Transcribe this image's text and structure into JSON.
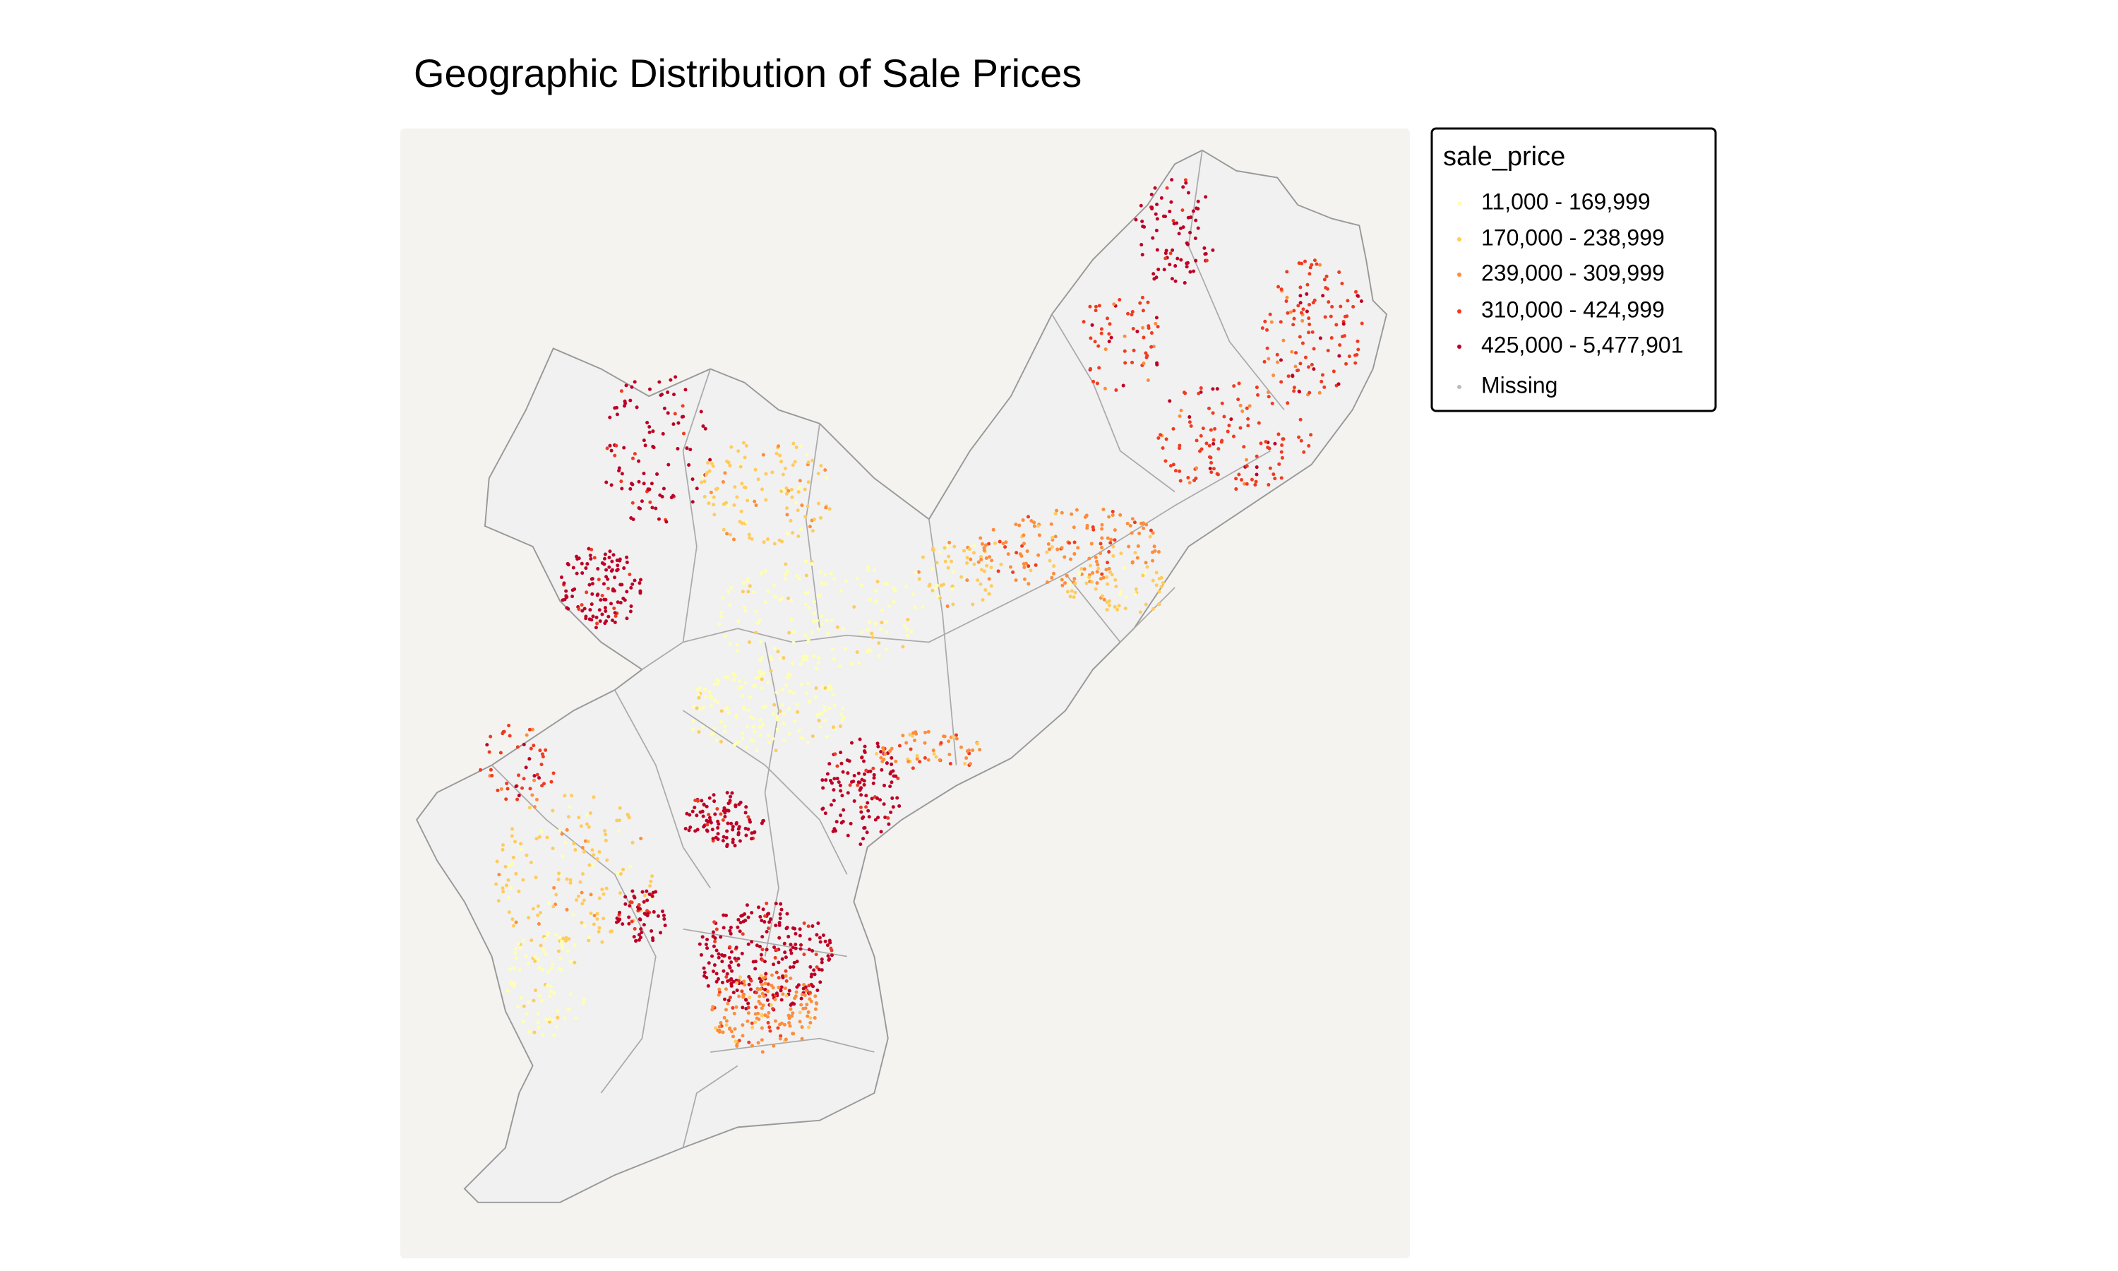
{
  "title": "Geographic Distribution of Sale Prices",
  "legend": {
    "title": "sale_price",
    "items": [
      {
        "label": "11,000 - 169,999",
        "color": "#ffffb2"
      },
      {
        "label": "170,000 - 238,999",
        "color": "#fecc5c"
      },
      {
        "label": "239,000 - 309,999",
        "color": "#fd8d3c"
      },
      {
        "label": "310,000 - 424,999",
        "color": "#f03b20"
      },
      {
        "label": "425,000 - 5,477,901",
        "color": "#bd0026"
      },
      {
        "label": "Missing",
        "color": "#bbbbbb"
      }
    ]
  }
}
